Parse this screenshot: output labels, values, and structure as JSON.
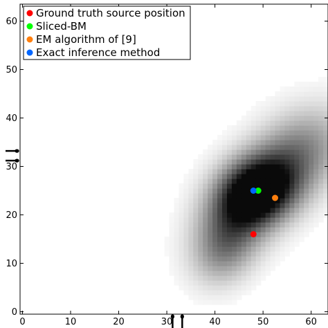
{
  "chart_data": {
    "type": "heatmap",
    "title": "",
    "xlabel": "",
    "ylabel": "",
    "xlim": [
      -0.5,
      63.5
    ],
    "ylim": [
      -0.5,
      63.5
    ],
    "x_ticks": [
      0,
      10,
      20,
      30,
      40,
      50,
      60
    ],
    "y_ticks": [
      0,
      10,
      20,
      30,
      40,
      50,
      60
    ],
    "x_tick_labels": [
      "0",
      "10",
      "20",
      "30",
      "40",
      "50",
      "60"
    ],
    "y_tick_labels": [
      "0",
      "10",
      "20",
      "30",
      "40",
      "50",
      "60"
    ],
    "grid": false,
    "colormap": "Greys",
    "heatmap_description_blobs": [
      {
        "x": 49.0,
        "y": 25.0,
        "sx": 5.5,
        "sy": 4.5,
        "rot_deg": 20,
        "w": 1.0
      },
      {
        "x": 44.0,
        "y": 19.0,
        "sx": 7.0,
        "sy": 5.0,
        "rot_deg": 55,
        "w": 0.55
      },
      {
        "x": 56.5,
        "y": 32.0,
        "sx": 8.0,
        "sy": 5.5,
        "rot_deg": 40,
        "w": 0.55
      },
      {
        "x": 42.0,
        "y": 12.0,
        "sx": 5.0,
        "sy": 4.0,
        "rot_deg": 60,
        "w": 0.25
      }
    ],
    "legend": {
      "placement": "top-left",
      "entries": [
        {
          "name": "Ground truth source position",
          "color": "#ff0000"
        },
        {
          "name": "Sliced-BM",
          "color": "#00ff00"
        },
        {
          "name": "EM algorithm of [9]",
          "color": "#ff7f0e"
        },
        {
          "name": "Exact inference method",
          "color": "#0066ff"
        }
      ]
    },
    "points": [
      {
        "series": "Ground truth source position",
        "x": 48,
        "y": 16,
        "color": "#ff0000"
      },
      {
        "series": "Sliced-BM",
        "x": 49,
        "y": 25,
        "color": "#00ff00"
      },
      {
        "series": "EM algorithm of [9]",
        "x": 52.5,
        "y": 23.5,
        "color": "#ff7f0e"
      },
      {
        "series": "Exact inference method",
        "x": 48,
        "y": 25,
        "color": "#0066ff"
      }
    ],
    "microphone_icons": [
      {
        "name": "microphone-icon",
        "side": "left",
        "y": 31.2
      },
      {
        "name": "microphone-icon",
        "side": "left",
        "y": 33.2
      },
      {
        "name": "microphone-icon",
        "side": "bottom",
        "x": 31.2
      },
      {
        "name": "microphone-icon",
        "side": "bottom",
        "x": 33.2
      }
    ]
  }
}
